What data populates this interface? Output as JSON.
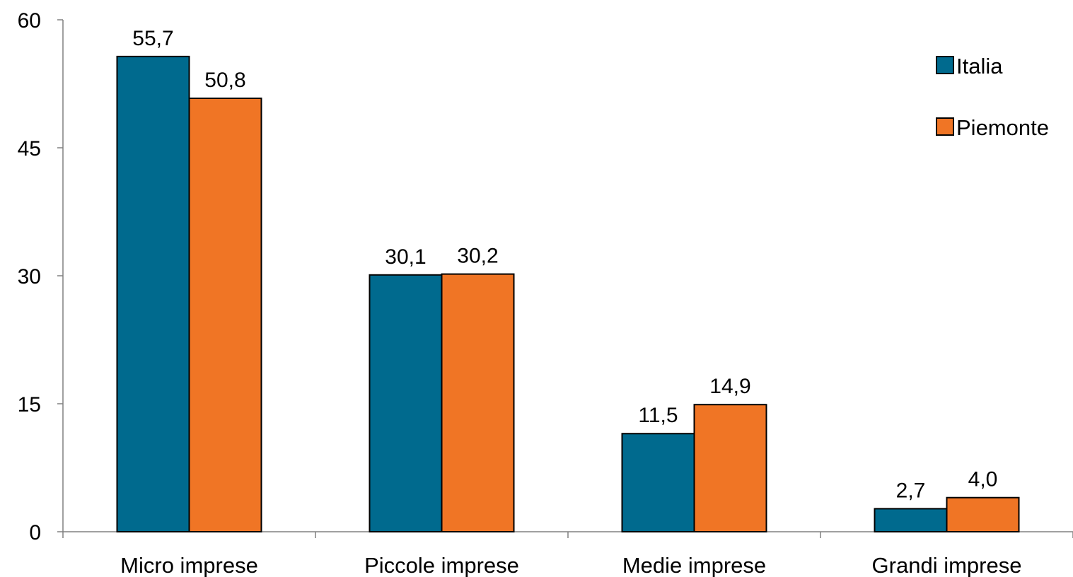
{
  "chart_data": {
    "type": "bar",
    "categories": [
      "Micro imprese",
      "Piccole imprese",
      "Medie imprese",
      "Grandi imprese"
    ],
    "series": [
      {
        "name": "Italia",
        "values": [
          55.7,
          30.1,
          11.5,
          2.7
        ],
        "labels": [
          "55,7",
          "30,1",
          "11,5",
          "2,7"
        ],
        "color": "#006a8e"
      },
      {
        "name": "Piemonte",
        "values": [
          50.8,
          30.2,
          14.9,
          4.0
        ],
        "labels": [
          "50,8",
          "30,2",
          "14,9",
          "4,0"
        ],
        "color": "#f07525"
      }
    ],
    "ylim": [
      0,
      60
    ],
    "yticks": [
      0,
      15,
      30,
      45,
      60
    ],
    "grid": false,
    "legend": "top-right"
  }
}
